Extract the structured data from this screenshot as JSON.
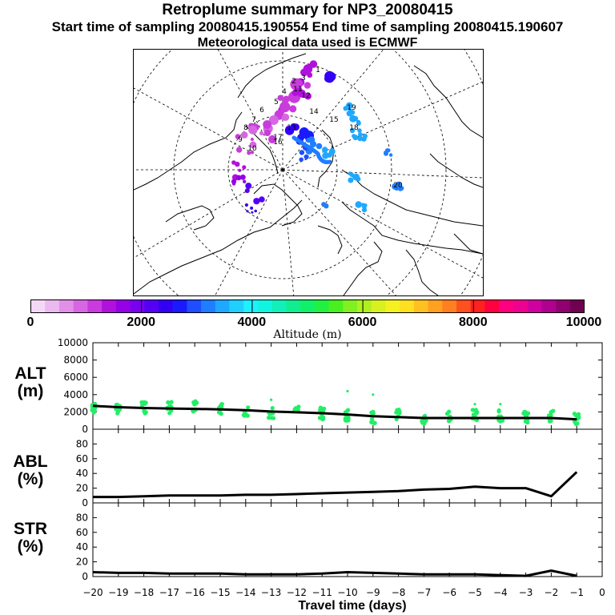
{
  "header": {
    "title": "Retroplume summary for NP3_20080415",
    "sampling_line": "Start time of sampling 20080415.190554     End time of sampling 20080415.190607",
    "met_line": "Meteorological data used is ECMWF"
  },
  "map": {
    "description_icon": "polar-stereographic-map",
    "labels": [
      "1",
      "2",
      "3",
      "4",
      "5",
      "6",
      "7",
      "8",
      "9",
      "10",
      "11",
      "12",
      "13",
      "14",
      "15",
      "16",
      "17",
      "18",
      "19",
      "20"
    ]
  },
  "colorbar": {
    "label": "Altitude (m)",
    "ticks": [
      "0",
      "2000",
      "4000",
      "6000",
      "8000",
      "10000"
    ],
    "colors": [
      "#f3d9f5",
      "#ebb8f0",
      "#e28fea",
      "#d766e3",
      "#c93bdc",
      "#b111dc",
      "#9600e6",
      "#7a00f0",
      "#5500f5",
      "#3300f5",
      "#1a1aff",
      "#1f4dff",
      "#1f7dff",
      "#1fa8ff",
      "#1fd0ff",
      "#1ff0ff",
      "#10f5e0",
      "#10f0b8",
      "#10ee90",
      "#10f068",
      "#20f040",
      "#48f020",
      "#80f020",
      "#b0f020",
      "#d8f020",
      "#f5f020",
      "#ffe020",
      "#ffc020",
      "#ffa020",
      "#ff8020",
      "#ff5020",
      "#ff2020",
      "#ff0040",
      "#ff0080",
      "#ee0090",
      "#d000a0",
      "#b00090",
      "#900070",
      "#700050"
    ]
  },
  "panels": [
    {
      "label_line1": "ALT",
      "label_line2": "(m)"
    },
    {
      "label_line1": "ABL",
      "label_line2": "(%)"
    },
    {
      "label_line1": "STR",
      "label_line2": "(%)"
    }
  ],
  "x_axis_label": "Travel time (days)",
  "chart_data": [
    {
      "type": "line",
      "title": "ALT",
      "ylabel": "ALT (m)",
      "ylim": [
        0,
        10000
      ],
      "yticks": [
        0,
        2000,
        4000,
        6000,
        8000,
        10000
      ],
      "xlim": [
        -20,
        0
      ],
      "xticks": [
        -20,
        -19,
        -18,
        -17,
        -16,
        -15,
        -14,
        -13,
        -12,
        -11,
        -10,
        -9,
        -8,
        -7,
        -6,
        -5,
        -4,
        -3,
        -2,
        -1,
        0
      ],
      "x": [
        -20,
        -19,
        -18,
        -17,
        -16,
        -15,
        -14,
        -13,
        -12,
        -11,
        -10,
        -9,
        -8,
        -7,
        -6,
        -5,
        -4,
        -3,
        -2,
        -1
      ],
      "values": [
        2700,
        2550,
        2450,
        2400,
        2350,
        2300,
        2200,
        2050,
        1950,
        1850,
        1700,
        1500,
        1400,
        1300,
        1300,
        1300,
        1300,
        1300,
        1300,
        1150
      ],
      "scatter_color": "#22ee66",
      "scatter_centers": [
        {
          "x": -20,
          "y": 2600
        },
        {
          "x": -19,
          "y": 2500
        },
        {
          "x": -18,
          "y": 2500
        },
        {
          "x": -17,
          "y": 2500
        },
        {
          "x": -16,
          "y": 2600
        },
        {
          "x": -15,
          "y": 2300
        },
        {
          "x": -14,
          "y": 2200
        },
        {
          "x": -13,
          "y": 1900
        },
        {
          "x": -12,
          "y": 2000
        },
        {
          "x": -11,
          "y": 1800
        },
        {
          "x": -10,
          "y": 1600
        },
        {
          "x": -9,
          "y": 1400
        },
        {
          "x": -8,
          "y": 1700
        },
        {
          "x": -7,
          "y": 1300
        },
        {
          "x": -6,
          "y": 1500
        },
        {
          "x": -5,
          "y": 1600
        },
        {
          "x": -4,
          "y": 1500
        },
        {
          "x": -3,
          "y": 1400
        },
        {
          "x": -2,
          "y": 1500
        },
        {
          "x": -1,
          "y": 1300
        }
      ],
      "scatter_outliers": [
        {
          "x": -13,
          "y": 3400
        },
        {
          "x": -10,
          "y": 4400
        },
        {
          "x": -9,
          "y": 4000
        },
        {
          "x": -5,
          "y": 2900
        },
        {
          "x": -4,
          "y": 2900
        }
      ]
    },
    {
      "type": "line",
      "title": "ABL",
      "ylabel": "ABL (%)",
      "ylim": [
        0,
        100
      ],
      "yticks": [
        0,
        20,
        40,
        60,
        80
      ],
      "xlim": [
        -20,
        0
      ],
      "x": [
        -20,
        -19,
        -18,
        -17,
        -16,
        -15,
        -14,
        -13,
        -12,
        -11,
        -10,
        -9,
        -8,
        -7,
        -6,
        -5,
        -4,
        -3,
        -2,
        -1
      ],
      "values": [
        8,
        8,
        9,
        10,
        10,
        10,
        11,
        11,
        12,
        13,
        14,
        15,
        16,
        18,
        19,
        22,
        20,
        20,
        9,
        42
      ]
    },
    {
      "type": "line",
      "title": "STR",
      "ylabel": "STR (%)",
      "ylim": [
        0,
        100
      ],
      "yticks": [
        0,
        20,
        40,
        60,
        80
      ],
      "xlim": [
        -20,
        0
      ],
      "x": [
        -20,
        -19,
        -18,
        -17,
        -16,
        -15,
        -14,
        -13,
        -12,
        -11,
        -10,
        -9,
        -8,
        -7,
        -6,
        -5,
        -4,
        -3,
        -2,
        -1
      ],
      "values": [
        6,
        5,
        5,
        4,
        4,
        4,
        3,
        3,
        3,
        4,
        6,
        5,
        4,
        3,
        3,
        3,
        2,
        1,
        8,
        1
      ]
    }
  ]
}
